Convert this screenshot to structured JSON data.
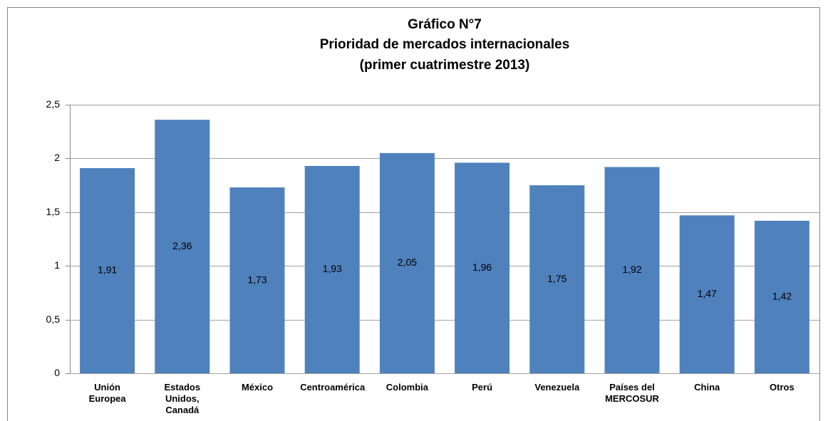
{
  "chart_data": {
    "type": "bar",
    "title": [
      "Gráfico N°7",
      "Prioridad de mercados internacionales",
      "(primer cuatrimestre 2013)"
    ],
    "categories": [
      "Unión Europea",
      "Estados Unidos, Canadá",
      "México",
      "Centroamérica",
      "Colombia",
      "Perú",
      "Venezuela",
      "Países del MERCOSUR",
      "China",
      "Otros"
    ],
    "values": [
      1.91,
      2.36,
      1.73,
      1.93,
      2.05,
      1.96,
      1.75,
      1.92,
      1.47,
      1.42
    ],
    "value_labels": [
      "1,91",
      "2,36",
      "1,73",
      "1,93",
      "2,05",
      "1,96",
      "1,75",
      "1,92",
      "1,47",
      "1,42"
    ],
    "color": "#4f81bd",
    "ylim": [
      0,
      2.5
    ],
    "yticks": [
      0,
      {
        "value": 0.5,
        "label": "0,5"
      },
      1,
      {
        "value": 1.5,
        "label": "1,5"
      },
      2,
      {
        "value": 2.5,
        "label": "2,5"
      }
    ],
    "grid": true
  }
}
